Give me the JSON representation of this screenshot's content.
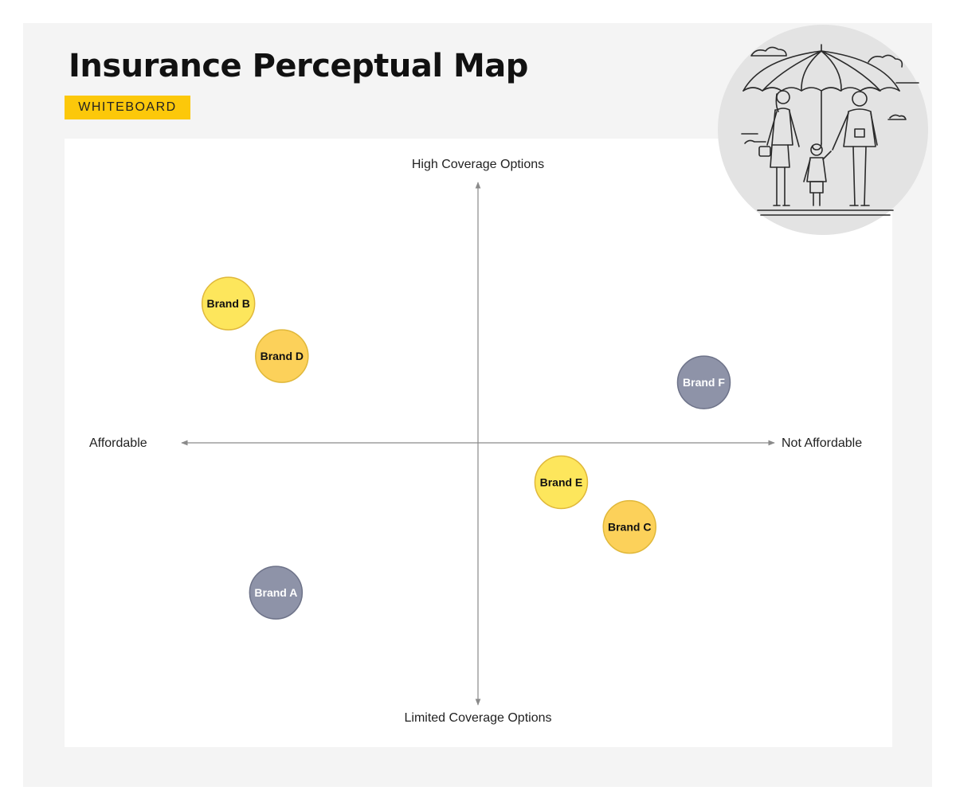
{
  "header": {
    "title": "Insurance Perceptual Map",
    "tag": "WHITEBOARD"
  },
  "colors": {
    "background": "#f4f4f4",
    "panel": "#ffffff",
    "tag": "#fcc80a",
    "axis": "#8a8a8a",
    "yellow": "#fde65c",
    "gold": "#fcd15a",
    "slate": "#8e93a8"
  },
  "illustration": {
    "icon": "family-under-umbrella-icon"
  },
  "chart_data": {
    "type": "scatter",
    "xlim": [
      -10,
      10
    ],
    "ylim": [
      -10,
      10
    ],
    "grid": false,
    "axis_labels": {
      "top": "High Coverage Options",
      "bottom": "Limited Coverage Options",
      "left": "Affordable",
      "right": "Not Affordable"
    },
    "points": [
      {
        "label": "Brand B",
        "x": -8.4,
        "y": 5.3,
        "color": "#fde65c",
        "text_color": "#111111"
      },
      {
        "label": "Brand D",
        "x": -6.6,
        "y": 3.3,
        "color": "#fcd15a",
        "text_color": "#111111"
      },
      {
        "label": "Brand F",
        "x": 7.6,
        "y": 2.3,
        "color": "#8e93a8",
        "text_color": "#ffffff"
      },
      {
        "label": "Brand E",
        "x": 2.8,
        "y": -1.5,
        "color": "#fde65c",
        "text_color": "#111111"
      },
      {
        "label": "Brand C",
        "x": 5.1,
        "y": -3.2,
        "color": "#fcd15a",
        "text_color": "#111111"
      },
      {
        "label": "Brand A",
        "x": -6.8,
        "y": -5.7,
        "color": "#8e93a8",
        "text_color": "#ffffff"
      }
    ]
  }
}
